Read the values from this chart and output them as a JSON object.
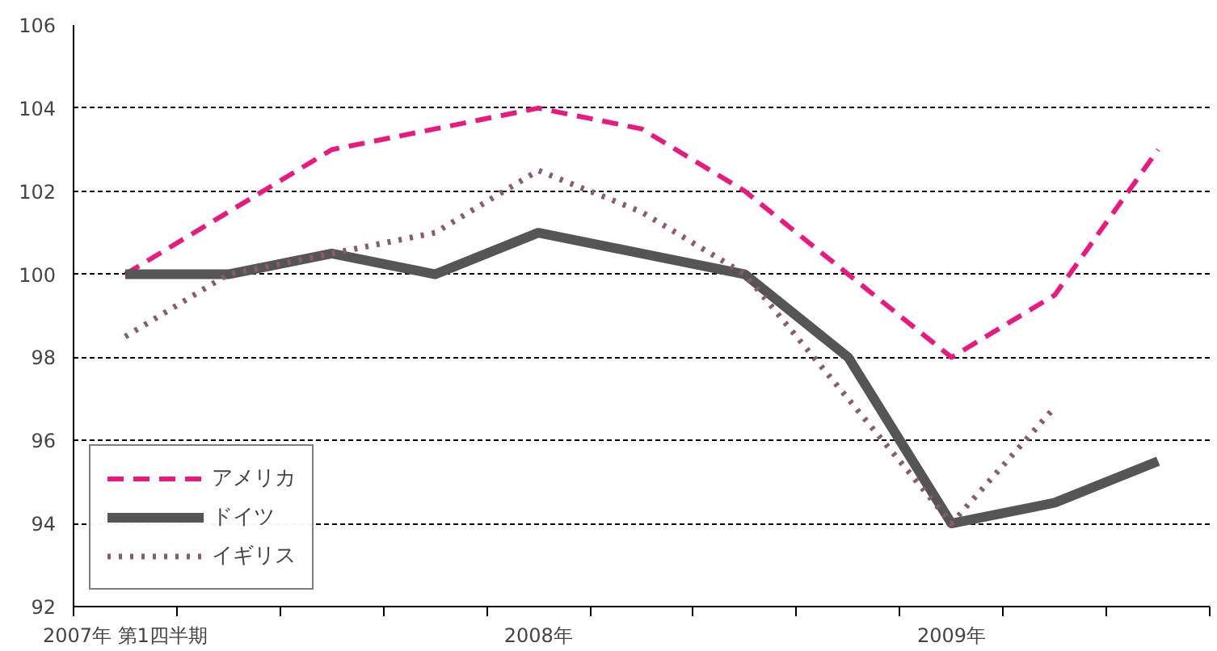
{
  "chart_data": {
    "type": "line",
    "categories": [
      "2007年 第1四半期",
      null,
      null,
      null,
      "2008年",
      null,
      null,
      null,
      "2009年",
      null,
      null
    ],
    "series": [
      {
        "name": "アメリカ",
        "color": "#e8197f",
        "line_style": "dashed",
        "values": [
          100,
          101.5,
          103,
          103.5,
          104,
          103.5,
          102,
          100,
          98,
          99.5,
          103
        ]
      },
      {
        "name": "ドイツ",
        "color": "#555555",
        "line_style": "solid",
        "values": [
          100,
          100,
          100.5,
          100,
          101,
          100.5,
          100,
          98,
          94,
          94.5,
          95.5
        ]
      },
      {
        "name": "イギリス",
        "color": "#8b5a6e",
        "line_style": "dotted",
        "values": [
          98.5,
          100,
          100.5,
          101,
          102.5,
          101.5,
          100,
          97,
          94,
          96.8,
          null
        ]
      }
    ],
    "ylim": [
      92,
      106
    ],
    "yticks": [
      92,
      94,
      96,
      98,
      100,
      102,
      104,
      106
    ],
    "grid": "y",
    "legend": "bottom left",
    "marker": "none"
  }
}
